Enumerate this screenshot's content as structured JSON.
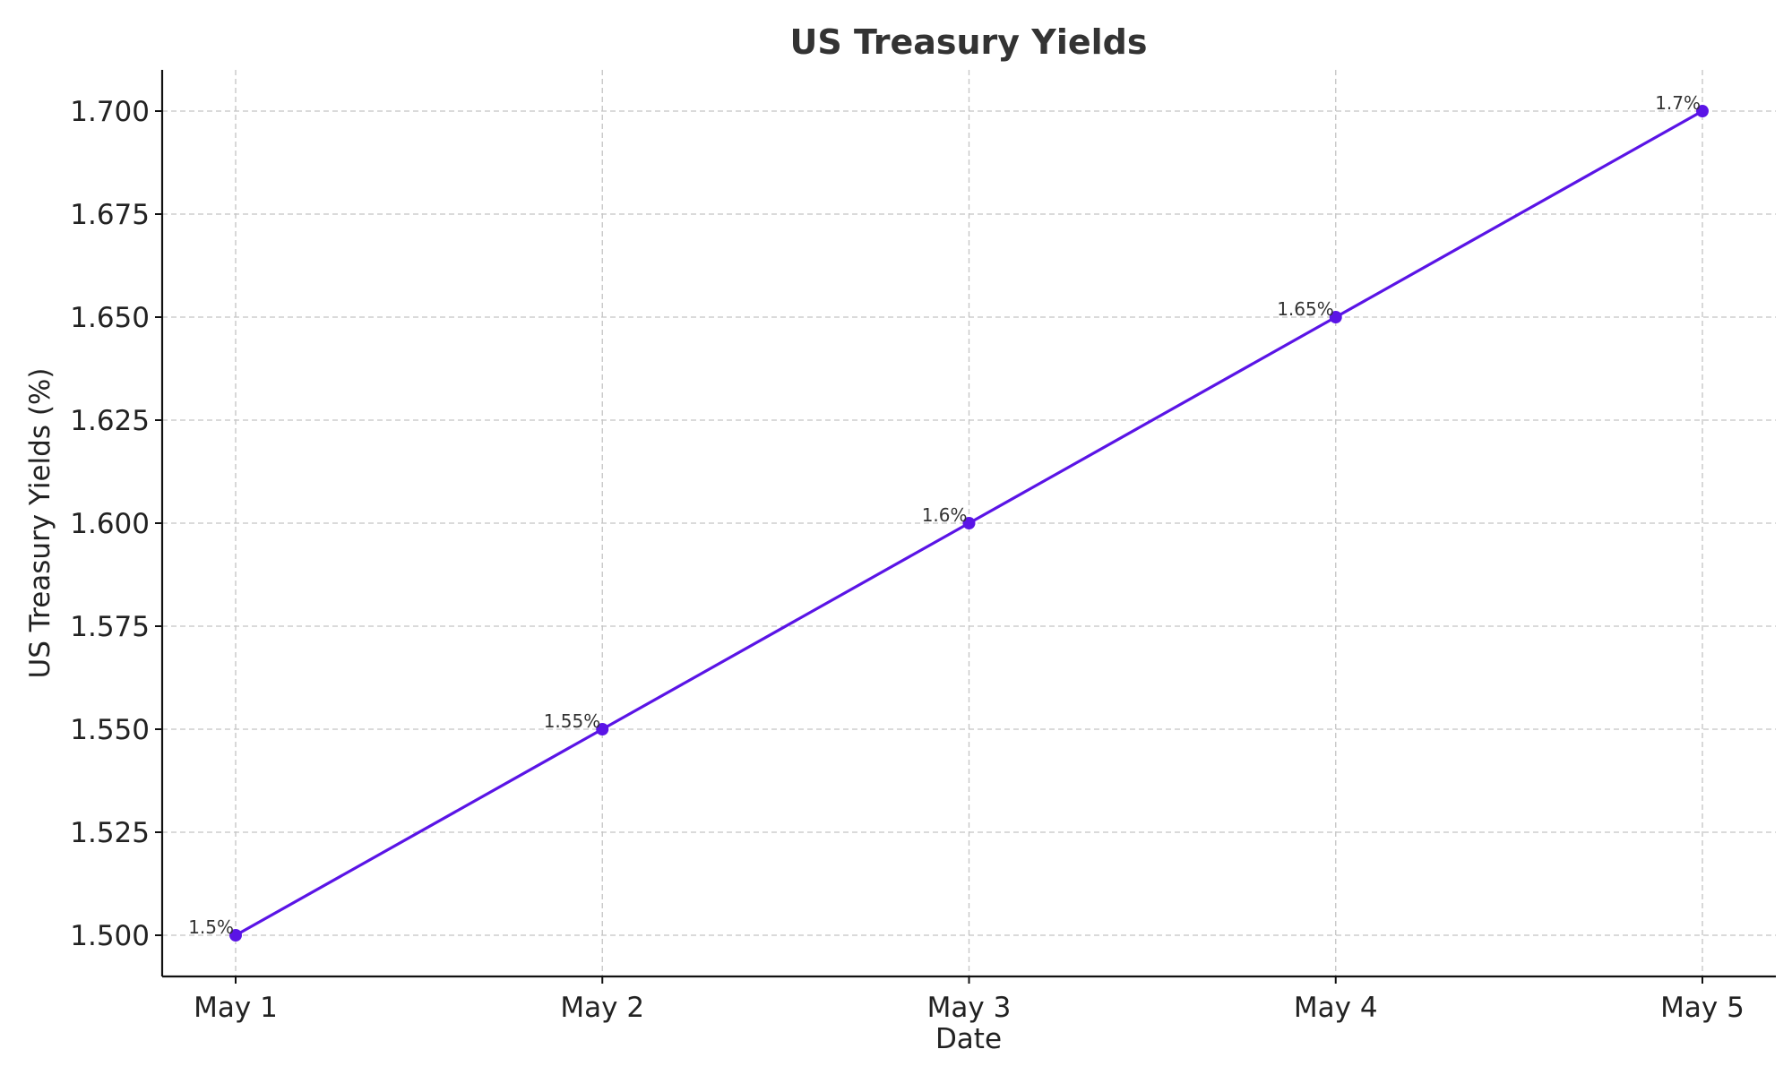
{
  "chart_data": {
    "type": "line",
    "title": "US Treasury Yields",
    "xlabel": "Date",
    "ylabel": "US Treasury Yields (%)",
    "categories": [
      "May 1",
      "May 2",
      "May 3",
      "May 4",
      "May 5"
    ],
    "series": [
      {
        "values": [
          1.5,
          1.55,
          1.6,
          1.65,
          1.7
        ],
        "data_labels": [
          "1.5%",
          "1.55%",
          "1.6%",
          "1.65%",
          "1.7%"
        ],
        "color": "#5a14e6"
      }
    ],
    "ylim": [
      1.49,
      1.71
    ],
    "yticks": [
      1.5,
      1.525,
      1.55,
      1.575,
      1.6,
      1.625,
      1.65,
      1.675,
      1.7
    ],
    "ytick_labels": [
      "1.500",
      "1.525",
      "1.550",
      "1.575",
      "1.600",
      "1.625",
      "1.650",
      "1.675",
      "1.700"
    ],
    "grid": true,
    "legend": "none"
  }
}
